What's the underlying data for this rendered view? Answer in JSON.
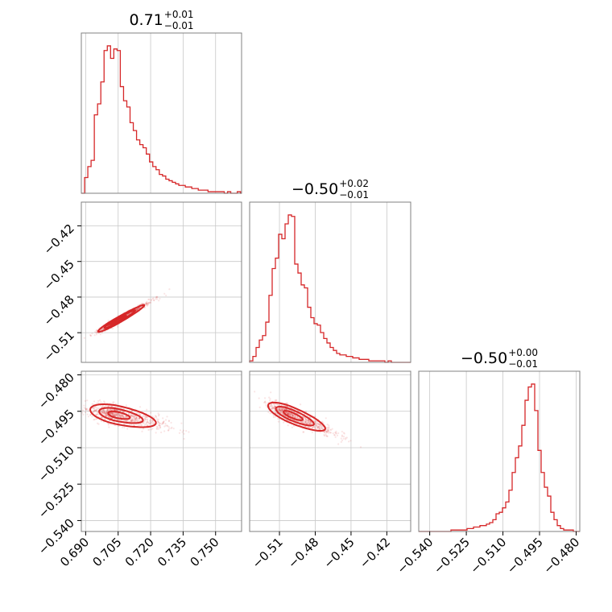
{
  "chart_data": {
    "type": "corner",
    "color": "#d62728",
    "grid": true,
    "parameters": [
      {
        "title": {
          "value": "0.71",
          "upper": "+0.01",
          "lower": "−0.01"
        },
        "range": [
          0.688,
          0.762
        ],
        "ticks": [
          0.69,
          0.705,
          0.72,
          0.735,
          0.75
        ],
        "tick_labels": [
          "0.690",
          "0.705",
          "0.720",
          "0.735",
          "0.750"
        ],
        "histogram": {
          "edges_start": 0.688,
          "bin_width": 0.0015,
          "counts": [
            0.0,
            0.1,
            0.17,
            0.21,
            0.5,
            0.57,
            0.71,
            0.91,
            0.94,
            0.86,
            0.92,
            0.91,
            0.68,
            0.59,
            0.55,
            0.45,
            0.4,
            0.34,
            0.31,
            0.29,
            0.25,
            0.2,
            0.17,
            0.15,
            0.12,
            0.11,
            0.09,
            0.08,
            0.07,
            0.06,
            0.05,
            0.05,
            0.04,
            0.04,
            0.03,
            0.03,
            0.02,
            0.02,
            0.02,
            0.01,
            0.01,
            0.01,
            0.01,
            0.01,
            0.0,
            0.01,
            0.0,
            0.0,
            0.01,
            0.0
          ]
        }
      },
      {
        "title": {
          "value": "−0.50",
          "upper": "+0.02",
          "lower": "−0.01"
        },
        "range": [
          -0.535,
          -0.4
        ],
        "ticks": [
          -0.51,
          -0.48,
          -0.45,
          -0.42
        ],
        "tick_labels": [
          "−0.51",
          "−0.48",
          "−0.45",
          "−0.42"
        ],
        "histogram": {
          "edges_start": -0.535,
          "bin_width": 0.0027,
          "counts": [
            0.01,
            0.04,
            0.1,
            0.15,
            0.18,
            0.27,
            0.45,
            0.63,
            0.7,
            0.86,
            0.83,
            0.93,
            0.99,
            0.98,
            0.66,
            0.6,
            0.52,
            0.5,
            0.37,
            0.3,
            0.26,
            0.25,
            0.2,
            0.16,
            0.13,
            0.1,
            0.08,
            0.06,
            0.05,
            0.05,
            0.04,
            0.04,
            0.03,
            0.03,
            0.02,
            0.02,
            0.02,
            0.01,
            0.01,
            0.01,
            0.01,
            0.01,
            0.0,
            0.01,
            0.0,
            0.0,
            0.0,
            0.0,
            0.0,
            0.0
          ]
        }
      },
      {
        "title": {
          "value": "−0.50",
          "upper": "+0.00",
          "lower": "−0.01"
        },
        "range": [
          -0.5445,
          -0.4785
        ],
        "ticks": [
          -0.54,
          -0.525,
          -0.51,
          -0.495,
          -0.48
        ],
        "tick_labels": [
          "−0.540",
          "−0.525",
          "−0.510",
          "−0.495",
          "−0.480"
        ],
        "histogram": {
          "edges_start": -0.5445,
          "bin_width": 0.00132,
          "counts": [
            0.0,
            0.0,
            0.0,
            0.0,
            0.0,
            0.0,
            0.0,
            0.0,
            0.0,
            0.0,
            0.01,
            0.01,
            0.01,
            0.01,
            0.01,
            0.02,
            0.02,
            0.03,
            0.03,
            0.04,
            0.04,
            0.05,
            0.06,
            0.08,
            0.12,
            0.13,
            0.16,
            0.2,
            0.28,
            0.4,
            0.5,
            0.58,
            0.72,
            0.89,
            0.98,
            1.0,
            0.82,
            0.55,
            0.4,
            0.3,
            0.24,
            0.13,
            0.08,
            0.04,
            0.02,
            0.01,
            0.01,
            0.01,
            0.0,
            0.0
          ]
        }
      }
    ],
    "joint": [
      {
        "x_param": 0,
        "y_param": 1,
        "center": [
          0.7045,
          -0.5
        ],
        "slope": 1.06,
        "sigma_major": 0.006,
        "sigma_minor": 0.0009
      },
      {
        "x_param": 0,
        "y_param": 2,
        "center": [
          0.7045,
          -0.4965
        ],
        "slope": -0.19,
        "sigma_major": 0.006,
        "sigma_minor": 0.0018
      },
      {
        "x_param": 1,
        "y_param": 2,
        "center": [
          -0.5,
          -0.4965
        ],
        "slope": -0.2,
        "sigma_major": 0.0095,
        "sigma_minor": 0.0016
      }
    ]
  }
}
